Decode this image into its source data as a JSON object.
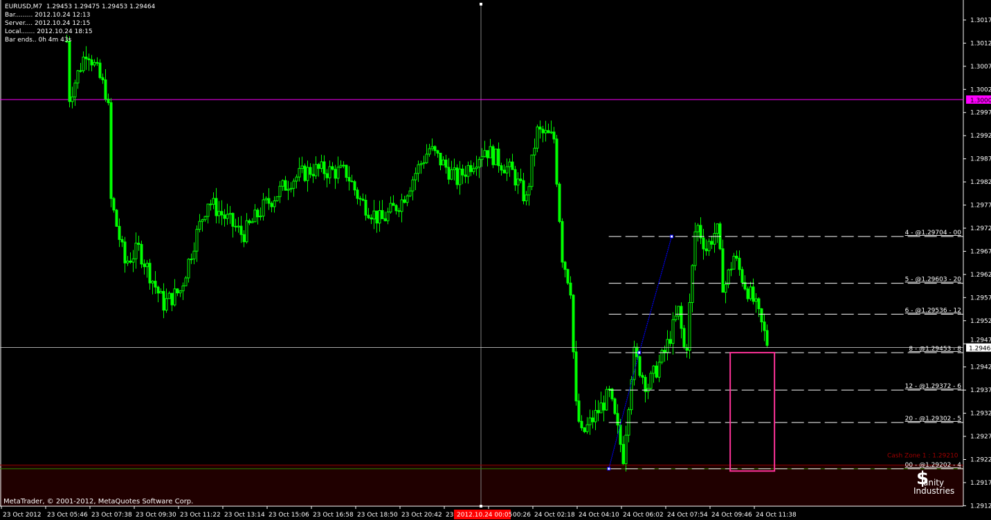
{
  "header": {
    "symbol_line": "EURUSD,M7  1.29453 1.29475 1.29453 1.29464",
    "bar_line": "Bar......... 2012.10.24 12:13",
    "server_line": "Server.... 2012.10.24 12:15",
    "local_line": "Local....... 2012.10.24 18:15",
    "bar_ends_line": "Bar ends.. 0h 4m 43s"
  },
  "footer": {
    "copyright": "MetaTrader, © 2001-2012, MetaQuotes Software Corp.",
    "logo_text": "Sanity Industries"
  },
  "colors": {
    "background": "#000000",
    "candle": "#00ff00",
    "round_level": "#ff00ff",
    "bid_line": "#c0c0c0",
    "trendline": "#0000ff",
    "box": "#ff3399",
    "cash_zone": "#8b0000",
    "cash_zone_fill": "#200000",
    "axis_text": "#ffffff",
    "time_highlight": "#ff0000"
  },
  "chart_data": {
    "type": "candlestick",
    "title": "EURUSD,M7",
    "ylim": [
      1.29097,
      1.30222
    ],
    "grid": false,
    "y_ticks": [
      "1.30172",
      "1.30122",
      "1.30072",
      "1.30022",
      "1.29972",
      "1.29922",
      "1.29872",
      "1.29822",
      "1.29772",
      "1.29722",
      "1.29672",
      "1.29622",
      "1.29572",
      "1.29522",
      "1.29472",
      "1.29422",
      "1.29372",
      "1.29322",
      "1.29272",
      "1.29222",
      "1.29172",
      "1.29122"
    ],
    "x_ticks": [
      "23 Oct 2012",
      "23 Oct 05:46",
      "23 Oct 07:38",
      "23 Oct 09:30",
      "23 Oct 11:22",
      "23 Oct 13:14",
      "23 Oct 15:06",
      "23 Oct 16:58",
      "23 Oct 18:50",
      "23 Oct 20:42",
      "23",
      "00:26",
      "24 Oct 02:18",
      "24 Oct 04:10",
      "24 Oct 06:02",
      "24 Oct 07:54",
      "24 Oct 09:46",
      "24 Oct 11:38"
    ],
    "time_cursor_label": "2012.10.24 00:05",
    "round_level": {
      "price": 1.3,
      "label": "1.30000"
    },
    "bid": {
      "price": 1.29464,
      "label": "1.29464"
    },
    "approx_close_path": [
      {
        "t": "2012.10.23 06:38",
        "close": 1.30126
      },
      {
        "t": "2012.10.23 06:45",
        "close": 1.30006
      },
      {
        "t": "2012.10.23 07:29",
        "close": 1.30111
      },
      {
        "t": "2012.10.23 08:22",
        "close": 1.30006
      },
      {
        "t": "2012.10.23 08:30",
        "close": 1.29782
      },
      {
        "t": "2012.10.23 09:05",
        "close": 1.29647
      },
      {
        "t": "2012.10.23 09:40",
        "close": 1.29677
      },
      {
        "t": "2012.10.23 10:42",
        "close": 1.29558
      },
      {
        "t": "2012.10.23 11:25",
        "close": 1.29587
      },
      {
        "t": "2012.10.23 12:00",
        "close": 1.29692
      },
      {
        "t": "2012.10.23 12:35",
        "close": 1.29782
      },
      {
        "t": "2012.10.23 13:28",
        "close": 1.29737
      },
      {
        "t": "2012.10.23 14:03",
        "close": 1.29707
      },
      {
        "t": "2012.10.23 14:55",
        "close": 1.29767
      },
      {
        "t": "2012.10.23 16:05",
        "close": 1.29827
      },
      {
        "t": "2012.10.23 16:58",
        "close": 1.29849
      },
      {
        "t": "2012.10.23 18:25",
        "close": 1.29842
      },
      {
        "t": "2012.10.23 19:00",
        "close": 1.29782
      },
      {
        "t": "2012.10.23 19:53",
        "close": 1.29737
      },
      {
        "t": "2012.10.23 20:45",
        "close": 1.29782
      },
      {
        "t": "2012.10.23 21:20",
        "close": 1.29842
      },
      {
        "t": "2012.10.23 21:55",
        "close": 1.29894
      },
      {
        "t": "2012.10.23 23:05",
        "close": 1.29827
      },
      {
        "t": "2012.10.24 00:15",
        "close": 1.29894
      },
      {
        "t": "2012.10.24 01:25",
        "close": 1.29842
      },
      {
        "t": "2012.10.24 02:00",
        "close": 1.29782
      },
      {
        "t": "2012.10.24 02:26",
        "close": 1.29931
      },
      {
        "t": "2012.10.24 03:10",
        "close": 1.29916
      },
      {
        "t": "2012.10.24 03:31",
        "close": 1.29662
      },
      {
        "t": "2012.10.24 03:54",
        "close": 1.29587
      },
      {
        "t": "2012.10.24 04:03",
        "close": 1.29348
      },
      {
        "t": "2012.10.24 04:20",
        "close": 1.29274
      },
      {
        "t": "2012.10.24 04:55",
        "close": 1.29318
      },
      {
        "t": "2012.10.24 05:30",
        "close": 1.29363
      },
      {
        "t": "2012.10.24 06:05",
        "close": 1.29229
      },
      {
        "t": "2012.10.24 06:31",
        "close": 1.29453
      },
      {
        "t": "2012.10.24 07:06",
        "close": 1.29378
      },
      {
        "t": "2012.10.24 07:50",
        "close": 1.29453
      },
      {
        "t": "2012.10.24 08:25",
        "close": 1.29543
      },
      {
        "t": "2012.10.24 08:43",
        "close": 1.29438
      },
      {
        "t": "2012.10.24 09:09",
        "close": 1.29737
      },
      {
        "t": "2012.10.24 09:35",
        "close": 1.29677
      },
      {
        "t": "2012.10.24 10:02",
        "close": 1.29722
      },
      {
        "t": "2012.10.24 10:19",
        "close": 1.29587
      },
      {
        "t": "2012.10.24 10:45",
        "close": 1.29662
      },
      {
        "t": "2012.10.24 11:12",
        "close": 1.29602
      },
      {
        "t": "2012.10.24 11:38",
        "close": 1.29558
      },
      {
        "t": "2012.10.24 12:13",
        "close": 1.29464
      }
    ],
    "levels": [
      {
        "price": 1.29704,
        "label": "4 - @1.29704 - 00"
      },
      {
        "price": 1.29603,
        "label": "5 - @1.29603 - 20"
      },
      {
        "price": 1.29536,
        "label": "6 - @1.29536 - 12"
      },
      {
        "price": 1.29453,
        "label": "8 - @1.29453 - 8"
      },
      {
        "price": 1.29372,
        "label": "12 - @1.29372 - 6"
      },
      {
        "price": 1.29302,
        "label": "20 - @1.29302 - 5"
      },
      {
        "price": 1.29202,
        "label": "00 - @1.29202 - 4"
      }
    ],
    "levels_start": "2012.10.24 05:30",
    "cash_zone": {
      "price": 1.2921,
      "label": "Cash Zone 1 : 1.29210"
    },
    "trendline": [
      {
        "t": "2012.10.24 05:30",
        "price": 1.29202
      },
      {
        "t": "2012.10.24 06:47",
        "price": 1.29453
      },
      {
        "t": "2012.10.24 08:09",
        "price": 1.29704
      }
    ],
    "box": {
      "t1": "2012.10.24 10:37",
      "t2": "2012.10.24 12:29",
      "p1": 1.29453,
      "p2": 1.29197
    }
  }
}
